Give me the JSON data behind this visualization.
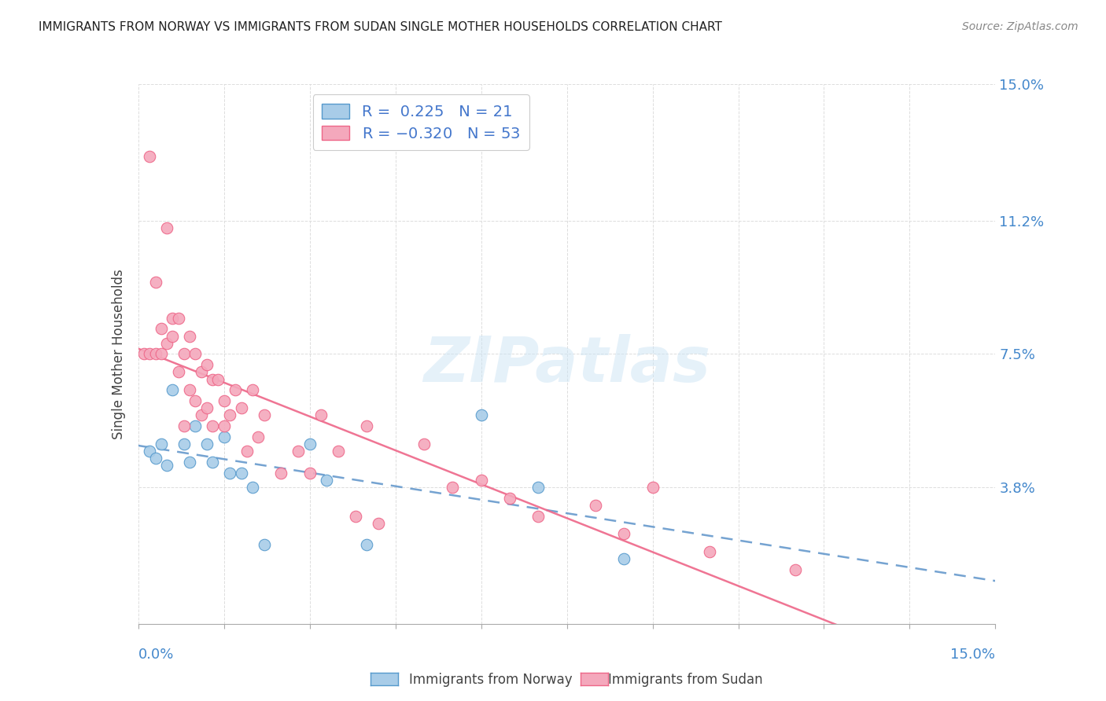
{
  "title": "IMMIGRANTS FROM NORWAY VS IMMIGRANTS FROM SUDAN SINGLE MOTHER HOUSEHOLDS CORRELATION CHART",
  "source": "Source: ZipAtlas.com",
  "ylabel": "Single Mother Households",
  "xlim": [
    0.0,
    0.15
  ],
  "ylim": [
    0.0,
    0.15
  ],
  "ytick_vals": [
    0.0,
    0.038,
    0.075,
    0.112,
    0.15
  ],
  "ytick_labels": [
    "",
    "3.8%",
    "7.5%",
    "11.2%",
    "15.0%"
  ],
  "norway_R": 0.225,
  "norway_N": 21,
  "sudan_R": -0.32,
  "sudan_N": 53,
  "norway_color": "#a8cce8",
  "sudan_color": "#f4a8bc",
  "norway_edge_color": "#5599cc",
  "sudan_edge_color": "#ee6688",
  "norway_line_color": "#6699cc",
  "sudan_line_color": "#ee6688",
  "legend_text_color": "#4477cc",
  "right_tick_color": "#4488cc",
  "watermark": "ZIPatlas",
  "norway_x": [
    0.002,
    0.003,
    0.004,
    0.005,
    0.006,
    0.008,
    0.009,
    0.01,
    0.012,
    0.013,
    0.015,
    0.016,
    0.018,
    0.02,
    0.022,
    0.03,
    0.033,
    0.04,
    0.06,
    0.07,
    0.085
  ],
  "norway_y": [
    0.048,
    0.046,
    0.05,
    0.044,
    0.065,
    0.05,
    0.045,
    0.055,
    0.05,
    0.045,
    0.052,
    0.042,
    0.042,
    0.038,
    0.022,
    0.05,
    0.04,
    0.022,
    0.058,
    0.038,
    0.018
  ],
  "sudan_x": [
    0.001,
    0.002,
    0.002,
    0.003,
    0.003,
    0.004,
    0.004,
    0.005,
    0.005,
    0.006,
    0.006,
    0.007,
    0.007,
    0.008,
    0.008,
    0.009,
    0.009,
    0.01,
    0.01,
    0.011,
    0.011,
    0.012,
    0.012,
    0.013,
    0.013,
    0.014,
    0.015,
    0.015,
    0.016,
    0.017,
    0.018,
    0.019,
    0.02,
    0.021,
    0.022,
    0.025,
    0.028,
    0.03,
    0.032,
    0.035,
    0.038,
    0.04,
    0.042,
    0.05,
    0.055,
    0.06,
    0.065,
    0.07,
    0.08,
    0.085,
    0.09,
    0.1,
    0.115
  ],
  "sudan_y": [
    0.075,
    0.075,
    0.13,
    0.075,
    0.095,
    0.082,
    0.075,
    0.078,
    0.11,
    0.08,
    0.085,
    0.07,
    0.085,
    0.075,
    0.055,
    0.065,
    0.08,
    0.062,
    0.075,
    0.058,
    0.07,
    0.06,
    0.072,
    0.068,
    0.055,
    0.068,
    0.062,
    0.055,
    0.058,
    0.065,
    0.06,
    0.048,
    0.065,
    0.052,
    0.058,
    0.042,
    0.048,
    0.042,
    0.058,
    0.048,
    0.03,
    0.055,
    0.028,
    0.05,
    0.038,
    0.04,
    0.035,
    0.03,
    0.033,
    0.025,
    0.038,
    0.02,
    0.015
  ]
}
